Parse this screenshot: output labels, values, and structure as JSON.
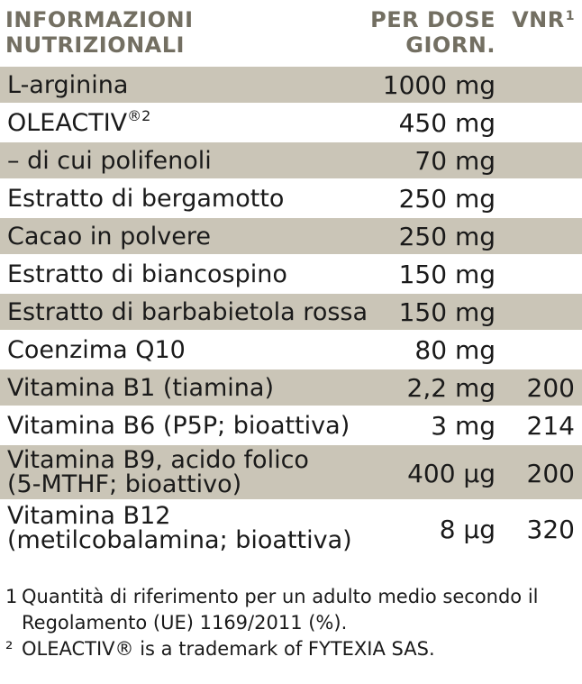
{
  "header": {
    "title_line1": "INFORMAZIONI",
    "title_line2": "NUTRIZIONALI",
    "dose_line1": "PER DOSE",
    "dose_line2": "GIORN.",
    "vnr": "VNR",
    "vnr_sup": "1"
  },
  "rows": [
    {
      "name": "L-arginina",
      "dose": "1000 mg",
      "vnr": "",
      "shaded": true
    },
    {
      "name": "OLEACTIV®2",
      "dose": "450 mg",
      "vnr": "",
      "shaded": false
    },
    {
      "name": "– di cui polifenoli",
      "dose": "70 mg",
      "vnr": "",
      "shaded": true
    },
    {
      "name": "Estratto di bergamotto",
      "dose": "250 mg",
      "vnr": "",
      "shaded": false
    },
    {
      "name": "Cacao in polvere",
      "dose": "250 mg",
      "vnr": "",
      "shaded": true
    },
    {
      "name": "Estratto di biancospino",
      "dose": "150 mg",
      "vnr": "",
      "shaded": false
    },
    {
      "name": "Estratto di barbabietola rossa",
      "dose": "150 mg",
      "vnr": "",
      "shaded": true
    },
    {
      "name": "Coenzima Q10",
      "dose": "80 mg",
      "vnr": "",
      "shaded": false
    },
    {
      "name": "Vitamina B1 (tiamina)",
      "dose": "2,2 mg",
      "vnr": "200",
      "shaded": true
    },
    {
      "name": "Vitamina B6 (P5P; bioattiva)",
      "dose": "3 mg",
      "vnr": "214",
      "shaded": false
    },
    {
      "name": "Vitamina B9, acido folico\n(5-MTHF; bioattivo)",
      "dose": "400 µg",
      "vnr": "200",
      "shaded": true
    },
    {
      "name": "Vitamina B12\n(metilcobalamina; bioattiva)",
      "dose": "8 µg",
      "vnr": "320",
      "shaded": false
    }
  ],
  "notes": {
    "n1_num": "1",
    "n1_text": "Quantità di riferimento per un adulto medio secondo il Regolamento (UE) 1169/2011 (%).",
    "n2_num": "²",
    "n2_text": "OLEACTIV® is a trademark of FYTEXIA SAS."
  },
  "colors": {
    "shade": "#cac5b7",
    "header_text": "#736f62",
    "body_text": "#1a1a1a"
  }
}
